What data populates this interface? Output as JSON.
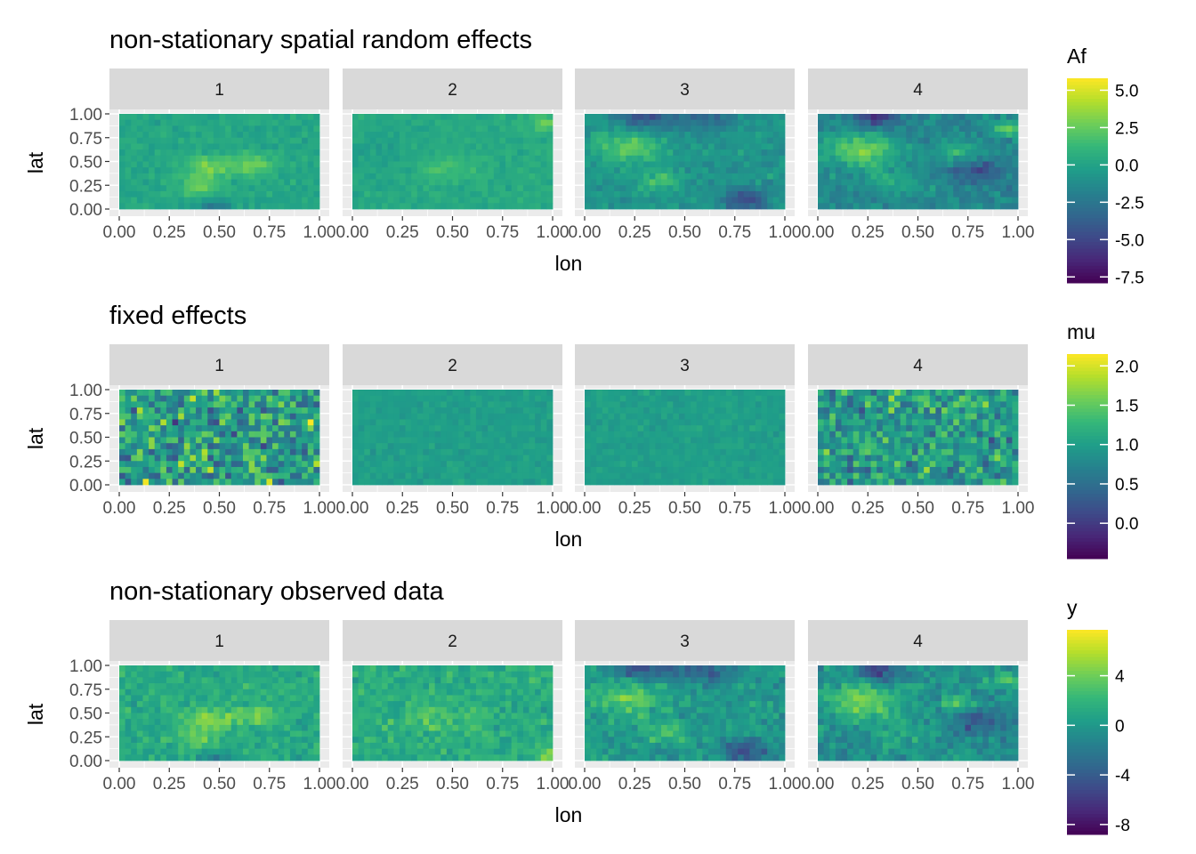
{
  "chart_data": [
    {
      "type": "heatmap",
      "title": "non-stationary spatial random effects",
      "xlabel": "lon",
      "ylabel": "lat",
      "panels": [
        "1",
        "2",
        "3",
        "4"
      ],
      "x_ticks": [
        "0.00",
        "0.25",
        "0.50",
        "0.75",
        "1.00"
      ],
      "y_ticks": [
        "0.00",
        "0.25",
        "0.50",
        "0.75",
        "1.00"
      ],
      "xlim": [
        0,
        1
      ],
      "ylim": [
        0,
        1
      ],
      "legend": {
        "title": "Af",
        "ticks": [
          "5.0",
          "2.5",
          "0.0",
          "-2.5",
          "-5.0",
          "-7.5"
        ],
        "tick_values": [
          5.0,
          2.5,
          0.0,
          -2.5,
          -5.0,
          -7.5
        ],
        "range": [
          -7.9,
          5.8
        ],
        "palette": "viridis"
      },
      "panel_patterns": [
        {
          "base": 0.2,
          "noise": 0.5,
          "blobs": [
            [
              0.45,
              0.45,
              0.08,
              2.8
            ],
            [
              0.68,
              0.47,
              0.07,
              2.8
            ],
            [
              0.4,
              0.25,
              0.08,
              2.2
            ],
            [
              0.48,
              0.02,
              0.06,
              -3.0
            ]
          ]
        },
        {
          "base": 0.4,
          "noise": 0.45,
          "blobs": [
            [
              0.45,
              0.45,
              0.12,
              1.3
            ],
            [
              0.98,
              0.9,
              0.06,
              1.8
            ],
            [
              0.2,
              0.6,
              0.2,
              -0.6
            ]
          ]
        },
        {
          "base": -0.8,
          "noise": 0.7,
          "blobs": [
            [
              0.22,
              0.65,
              0.12,
              3.2
            ],
            [
              0.38,
              0.3,
              0.07,
              2.5
            ],
            [
              0.8,
              0.1,
              0.08,
              -4.0
            ],
            [
              0.3,
              0.97,
              0.1,
              -3.5
            ],
            [
              0.6,
              0.95,
              0.1,
              -2.5
            ]
          ]
        },
        {
          "base": -1.5,
          "noise": 0.8,
          "blobs": [
            [
              0.22,
              0.62,
              0.12,
              4.5
            ],
            [
              0.7,
              0.6,
              0.08,
              2.2
            ],
            [
              0.95,
              0.85,
              0.06,
              3.5
            ],
            [
              0.8,
              0.4,
              0.1,
              -3.0
            ],
            [
              0.3,
              0.95,
              0.07,
              -4.0
            ],
            [
              0.38,
              0.3,
              0.1,
              1.8
            ]
          ]
        }
      ]
    },
    {
      "type": "heatmap",
      "title": "fixed effects",
      "xlabel": "lon",
      "ylabel": "lat",
      "panels": [
        "1",
        "2",
        "3",
        "4"
      ],
      "x_ticks": [
        "0.00",
        "0.25",
        "0.50",
        "0.75",
        "1.00"
      ],
      "y_ticks": [
        "0.00",
        "0.25",
        "0.50",
        "0.75",
        "1.00"
      ],
      "xlim": [
        0,
        1
      ],
      "ylim": [
        0,
        1
      ],
      "legend": {
        "title": "mu",
        "ticks": [
          "2.0",
          "1.5",
          "1.0",
          "0.5",
          "0.0"
        ],
        "tick_values": [
          2.0,
          1.5,
          1.0,
          0.5,
          0.0
        ],
        "range": [
          -0.45,
          2.15
        ],
        "palette": "viridis"
      },
      "panel_patterns": [
        {
          "base": 1.0,
          "noise": 0.6,
          "blobs": []
        },
        {
          "base": 1.0,
          "noise": 0.08,
          "blobs": []
        },
        {
          "base": 1.0,
          "noise": 0.08,
          "blobs": []
        },
        {
          "base": 1.0,
          "noise": 0.45,
          "blobs": []
        }
      ]
    },
    {
      "type": "heatmap",
      "title": "non-stationary observed data",
      "xlabel": "lon",
      "ylabel": "lat",
      "panels": [
        "1",
        "2",
        "3",
        "4"
      ],
      "x_ticks": [
        "0.00",
        "0.25",
        "0.50",
        "0.75",
        "1.00"
      ],
      "y_ticks": [
        "0.00",
        "0.25",
        "0.50",
        "0.75",
        "1.00"
      ],
      "xlim": [
        0,
        1
      ],
      "ylim": [
        0,
        1
      ],
      "legend": {
        "title": "y",
        "ticks": [
          "4",
          "0",
          "-4",
          "-8"
        ],
        "tick_values": [
          4,
          0,
          -4,
          -8
        ],
        "range": [
          -8.8,
          7.7
        ],
        "palette": "viridis"
      },
      "panel_patterns": [
        {
          "base": 1.2,
          "noise": 1.0,
          "blobs": [
            [
              0.45,
              0.45,
              0.08,
              3.5
            ],
            [
              0.68,
              0.47,
              0.07,
              3.0
            ],
            [
              0.4,
              0.25,
              0.08,
              2.5
            ],
            [
              0.48,
              0.02,
              0.06,
              -3.5
            ]
          ]
        },
        {
          "base": 1.4,
          "noise": 1.1,
          "blobs": [
            [
              0.45,
              0.45,
              0.12,
              1.5
            ],
            [
              0.98,
              0.05,
              0.05,
              3.0
            ]
          ]
        },
        {
          "base": 0.0,
          "noise": 1.2,
          "blobs": [
            [
              0.22,
              0.65,
              0.12,
              3.8
            ],
            [
              0.38,
              0.3,
              0.07,
              3.0
            ],
            [
              0.8,
              0.1,
              0.08,
              -5.0
            ],
            [
              0.3,
              0.97,
              0.1,
              -4.5
            ],
            [
              0.6,
              0.95,
              0.1,
              -3.5
            ]
          ]
        },
        {
          "base": -0.6,
          "noise": 1.3,
          "blobs": [
            [
              0.22,
              0.62,
              0.12,
              5.5
            ],
            [
              0.7,
              0.6,
              0.08,
              2.5
            ],
            [
              0.95,
              0.85,
              0.06,
              4.0
            ],
            [
              0.8,
              0.4,
              0.1,
              -3.5
            ],
            [
              0.3,
              0.95,
              0.07,
              -5.0
            ],
            [
              0.38,
              0.3,
              0.1,
              2.0
            ]
          ]
        }
      ]
    }
  ]
}
